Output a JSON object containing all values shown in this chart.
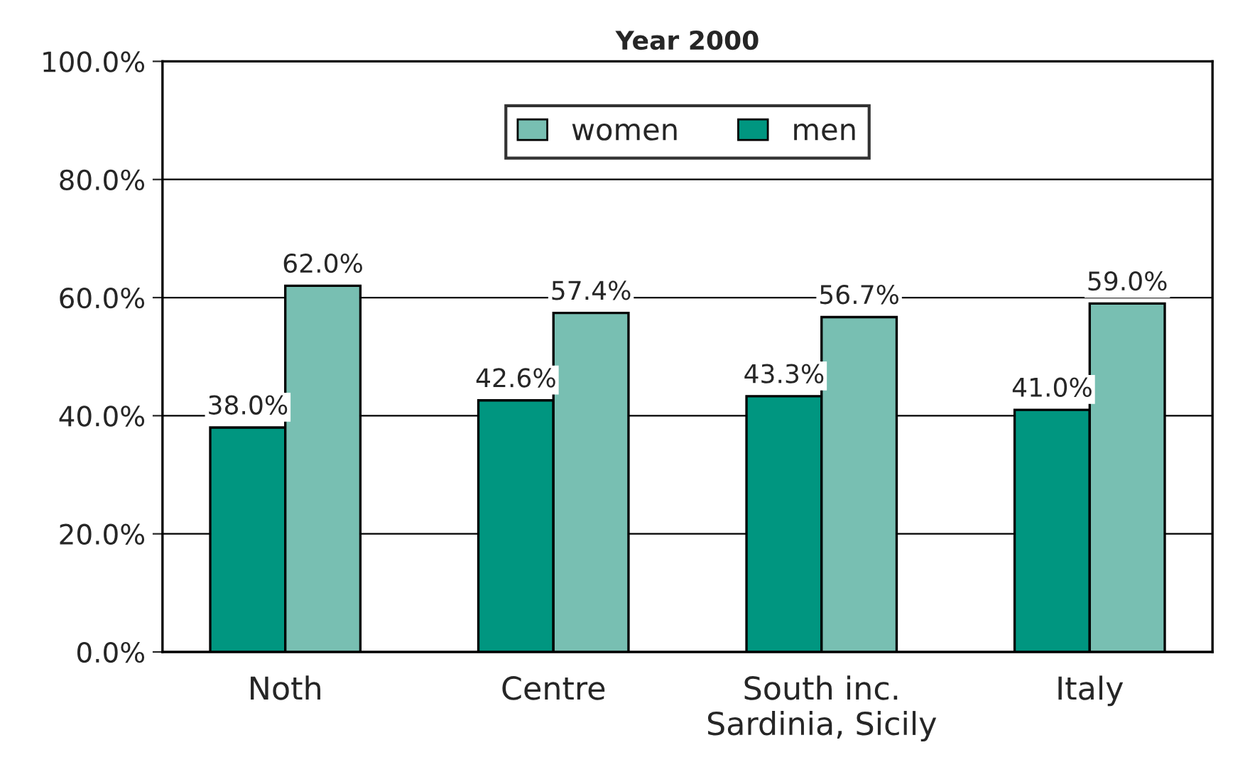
{
  "chart_data": {
    "type": "bar",
    "title": "Year 2000",
    "categories": [
      "Noth",
      "Centre",
      "South inc.\nSardinia, Sicily",
      "Italy"
    ],
    "series": [
      {
        "name": "men",
        "color": "#009680",
        "values": [
          38.0,
          42.6,
          43.3,
          41.0
        ],
        "value_labels": [
          "38.0%",
          "42.6%",
          "43.3%",
          "41.0%"
        ]
      },
      {
        "name": "women",
        "color": "#78bfb2",
        "values": [
          62.0,
          57.4,
          56.7,
          59.0
        ],
        "value_labels": [
          "62.0%",
          "57.4%",
          "56.7%",
          "59.0%"
        ]
      }
    ],
    "ylim": [
      0,
      100
    ],
    "yticks": [
      {
        "value": 0,
        "label": "0.0%"
      },
      {
        "value": 20,
        "label": "20.0%"
      },
      {
        "value": 40,
        "label": "40.0%"
      },
      {
        "value": 60,
        "label": "60.0%"
      },
      {
        "value": 80,
        "label": "80.0%"
      },
      {
        "value": 100,
        "label": "100.0%"
      }
    ],
    "grid": "y",
    "legend": "top"
  }
}
